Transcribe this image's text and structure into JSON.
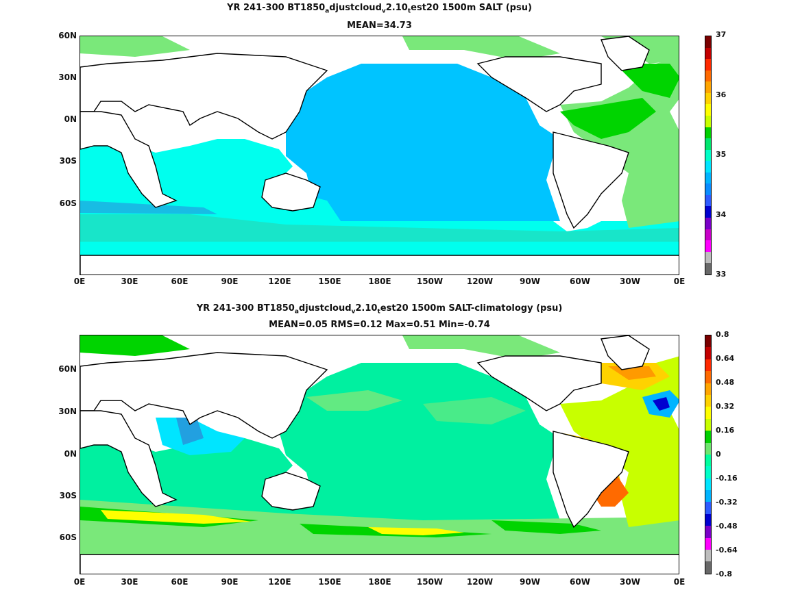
{
  "panel1": {
    "title_a": "YR 241-300 BT1850",
    "title_sub1": "a",
    "title_b": "djustcloud",
    "title_sub2": "v",
    "title_c": "2.10",
    "title_sub3": "t",
    "title_d": "est20 1500m SALT (psu)",
    "stats": "MEAN=34.73",
    "colorbar_ticks": [
      "37",
      "36",
      "35",
      "34",
      "33"
    ],
    "colorbar_colors": [
      "#7a0000",
      "#c30000",
      "#ff2a00",
      "#ff6a00",
      "#ffa500",
      "#ffd200",
      "#ffff00",
      "#c8ff00",
      "#00d000",
      "#00e66e",
      "#00ffc8",
      "#00e5ff",
      "#00b4ff",
      "#0a8cff",
      "#2e5bff",
      "#0000d0",
      "#7a00c8",
      "#c800c8",
      "#ff00ff",
      "#bdbdbd",
      "#686868"
    ]
  },
  "panel2": {
    "title_a": "YR 241-300 BT1850",
    "title_sub1": "a",
    "title_b": "djustcloud",
    "title_sub2": "v",
    "title_c": "2.10",
    "title_sub3": "t",
    "title_d": "est20 1500m SALT-climatology (psu)",
    "stats": "MEAN=0.05   RMS=0.12   Max=0.51   Min=-0.74",
    "colorbar_ticks": [
      "0.8",
      "0.64",
      "0.48",
      "0.32",
      "0.16",
      "0",
      "-0.16",
      "-0.32",
      "-0.48",
      "-0.64",
      "-0.8"
    ],
    "colorbar_colors": [
      "#7a0000",
      "#c30000",
      "#ff2a00",
      "#ff6a00",
      "#ffa500",
      "#ffd200",
      "#ffff00",
      "#c8ff00",
      "#00d000",
      "#6ee66e",
      "#00ff9e",
      "#00ffc8",
      "#00e5ff",
      "#00b4ff",
      "#2e5bff",
      "#0000d0",
      "#7a00c8",
      "#ff00ff",
      "#bdbdbd",
      "#686868"
    ]
  },
  "axes": {
    "lat_labels": [
      "60N",
      "30N",
      "0N",
      "30S",
      "60S"
    ],
    "lon_labels": [
      "0E",
      "30E",
      "60E",
      "90E",
      "120E",
      "150E",
      "180E",
      "150W",
      "120W",
      "90W",
      "60W",
      "30W",
      "0E"
    ]
  }
}
